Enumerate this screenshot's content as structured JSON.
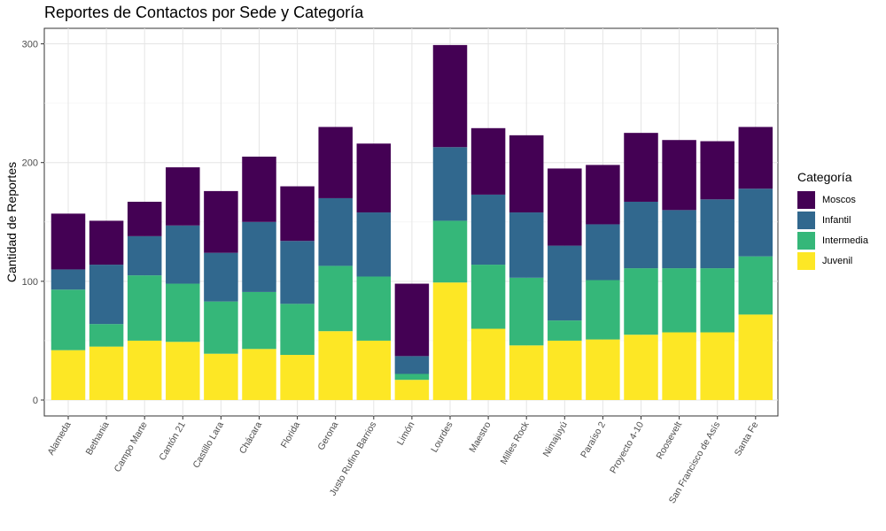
{
  "chart_data": {
    "type": "bar",
    "stacked": true,
    "title": "Reportes de Contactos por Sede y Categoría",
    "xlabel": "",
    "ylabel": "Cantidad de Reportes",
    "ylim": [
      0,
      310
    ],
    "yticks": [
      0,
      100,
      200,
      300
    ],
    "grid": true,
    "legend_position": "right",
    "legend_title": "Categoría",
    "categories": [
      "Alameda",
      "Bethania",
      "Campo Marte",
      "Cantón 21",
      "Castillo Lara",
      "Chácara",
      "Florida",
      "Gerona",
      "Justo Rufino Barrios",
      "Limón",
      "Lourdes",
      "Maestro",
      "Milles Rock",
      "Nimajuyú",
      "Paraíso 2",
      "Proyecto 4-10",
      "Roosevelt",
      "San Francisco de Asís",
      "Santa Fe"
    ],
    "series": [
      {
        "name": "Juvenil",
        "color": "#FDE725",
        "values": [
          42,
          45,
          50,
          49,
          39,
          43,
          38,
          58,
          50,
          17,
          99,
          60,
          46,
          50,
          51,
          55,
          57,
          57,
          72
        ]
      },
      {
        "name": "Intermedia",
        "color": "#35B779",
        "values": [
          51,
          19,
          55,
          49,
          44,
          48,
          43,
          55,
          54,
          5,
          52,
          54,
          57,
          17,
          50,
          56,
          54,
          54,
          49
        ]
      },
      {
        "name": "Infantil",
        "color": "#31688E",
        "values": [
          17,
          50,
          33,
          49,
          41,
          59,
          53,
          57,
          54,
          15,
          62,
          59,
          55,
          63,
          47,
          56,
          49,
          58,
          57
        ]
      },
      {
        "name": "Moscos",
        "color": "#440154",
        "values": [
          47,
          37,
          29,
          49,
          52,
          55,
          46,
          60,
          58,
          61,
          86,
          56,
          65,
          65,
          50,
          58,
          59,
          49,
          52
        ]
      }
    ]
  }
}
